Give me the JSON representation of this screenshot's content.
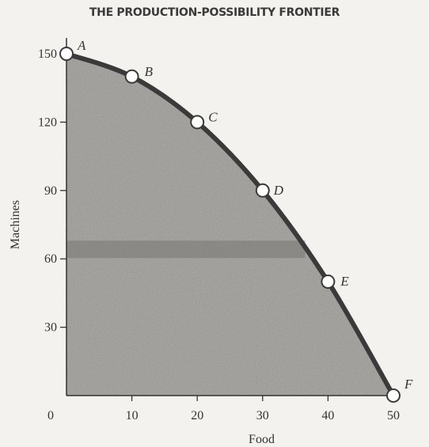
{
  "chart_data": {
    "type": "line",
    "title": "THE PRODUCTION-POSSIBILITY FRONTIER",
    "xlabel": "Food",
    "ylabel": "Machines",
    "xlim": [
      0,
      50
    ],
    "ylim": [
      0,
      150
    ],
    "x_ticks": [
      "0",
      "10",
      "20",
      "30",
      "40",
      "50"
    ],
    "y_ticks": [
      "30",
      "60",
      "90",
      "120",
      "150"
    ],
    "points": [
      {
        "label": "A",
        "x": 0,
        "y": 150
      },
      {
        "label": "B",
        "x": 10,
        "y": 140
      },
      {
        "label": "C",
        "x": 20,
        "y": 120
      },
      {
        "label": "D",
        "x": 30,
        "y": 90
      },
      {
        "label": "E",
        "x": 40,
        "y": 50
      },
      {
        "label": "F",
        "x": 50,
        "y": 0
      }
    ],
    "fill_below_curve": true,
    "grid": false,
    "colors": {
      "curve": "#3a3a3a",
      "fill": "#9c9a95",
      "marker_fill": "#ffffff",
      "axis": "#333333"
    }
  }
}
